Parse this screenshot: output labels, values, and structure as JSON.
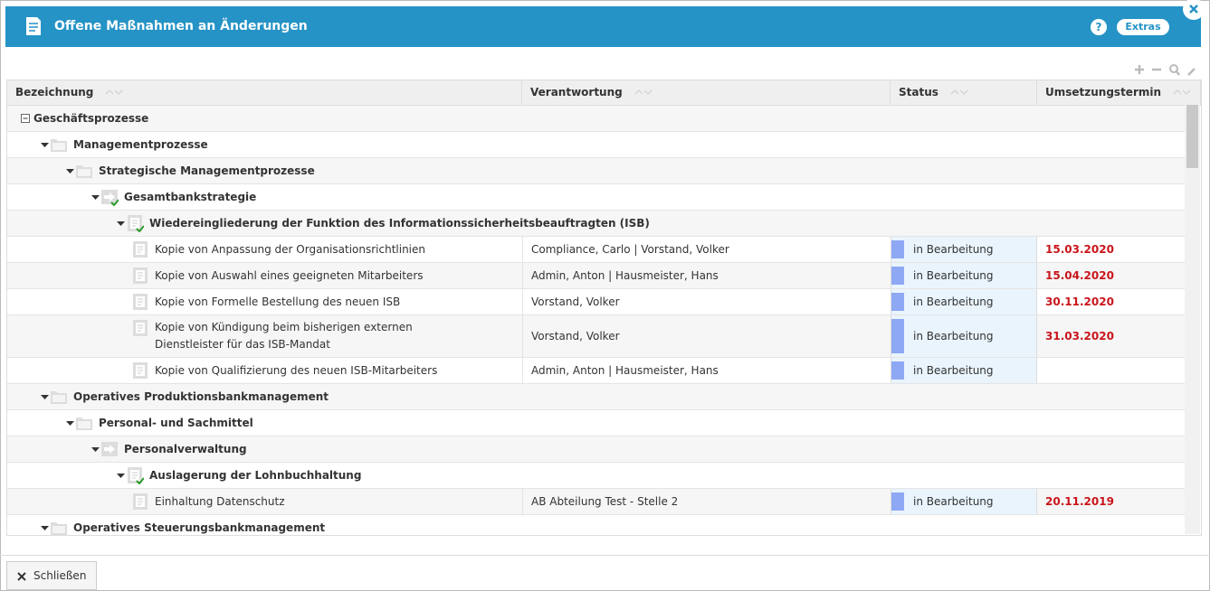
{
  "header": {
    "title": "Offene Maßnahmen an Änderungen",
    "help": "?",
    "extras": "Extras"
  },
  "table": {
    "columns": [
      "Bezeichnung",
      "Verantwortung",
      "Status",
      "Umsetzungstermin"
    ],
    "tree": {
      "label": "Geschäftsprozesse",
      "children": [
        {
          "label": "Managementprozesse",
          "children": [
            {
              "label": "Strategische Managementprozesse",
              "children": [
                {
                  "label": "Gesamtbankstrategie",
                  "done": true,
                  "children": [
                    {
                      "label": "Wiedereingliederung der Funktion des Informationssicherheitsbeauftragten (ISB)",
                      "done": true,
                      "children": [
                        {
                          "label": "Kopie von Anpassung der Organisationsrichtlinien",
                          "responsible": "Compliance, Carlo | Vorstand, Volker",
                          "status": "in Bearbeitung",
                          "date": "15.03.2020"
                        },
                        {
                          "label": "Kopie von Auswahl eines geeigneten Mitarbeiters",
                          "responsible": "Admin, Anton | Hausmeister, Hans",
                          "status": "in Bearbeitung",
                          "date": "15.04.2020"
                        },
                        {
                          "label": "Kopie von Formelle Bestellung des neuen ISB",
                          "responsible": "Vorstand, Volker",
                          "status": "in Bearbeitung",
                          "date": "30.11.2020"
                        },
                        {
                          "label": "Kopie von Kündigung beim bisherigen externen Dienstleister für das ISB-Mandat",
                          "responsible": "Vorstand, Volker",
                          "status": "in Bearbeitung",
                          "date": "31.03.2020"
                        },
                        {
                          "label": "Kopie von Qualifizierung des neuen ISB-Mitarbeiters",
                          "responsible": "Admin, Anton | Hausmeister, Hans",
                          "status": "in Bearbeitung"
                        }
                      ]
                    }
                  ]
                }
              ]
            }
          ]
        },
        {
          "label": "Operatives Produktionsbankmanagement",
          "children": [
            {
              "label": "Personal- und Sachmittel",
              "children": [
                {
                  "label": "Personalverwaltung",
                  "children": [
                    {
                      "label": "Auslagerung der Lohnbuchhaltung",
                      "done": true,
                      "children": [
                        {
                          "label": "Einhaltung Datenschutz",
                          "responsible": "AB Abteilung Test - Stelle 2",
                          "status": "in Bearbeitung",
                          "date": "20.11.2019"
                        }
                      ]
                    }
                  ]
                }
              ]
            }
          ]
        },
        {
          "label": "Operatives Steuerungsbankmanagement",
          "children": []
        }
      ]
    }
  },
  "footer": {
    "close": "Schließen"
  }
}
